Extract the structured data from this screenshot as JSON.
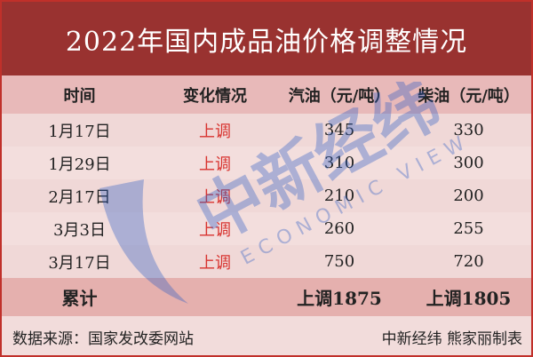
{
  "title": "2022年国内成品油价格调整情况",
  "headers": [
    "时间",
    "变化情况",
    "汽油（元/吨）",
    "柴油（元/吨）"
  ],
  "rows": [
    {
      "date": "1月17日",
      "change": "上调",
      "gasoline": "345",
      "diesel": "330"
    },
    {
      "date": "1月29日",
      "change": "上调",
      "gasoline": "310",
      "diesel": "300"
    },
    {
      "date": "2月17日",
      "change": "上调",
      "gasoline": "210",
      "diesel": "200"
    },
    {
      "date": "3月3日",
      "change": "上调",
      "gasoline": "260",
      "diesel": "255"
    },
    {
      "date": "3月17日",
      "change": "上调",
      "gasoline": "750",
      "diesel": "720"
    }
  ],
  "total": {
    "label": "累计",
    "gasoline": "上调1875",
    "diesel": "上调1805"
  },
  "footer": {
    "source": "数据来源：国家发改委网站",
    "credit": "中新经纬  熊家丽制表"
  },
  "watermark": {
    "text": "中新经纬",
    "sub": "ECONOMIC VIEW",
    "color": "#2a5bc4"
  },
  "colors": {
    "title_bg": "#993230",
    "up": "#d8332f"
  }
}
